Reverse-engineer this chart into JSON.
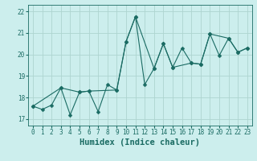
{
  "xlabel": "Humidex (Indice chaleur)",
  "background_color": "#cceeed",
  "grid_color": "#aed4d0",
  "line_color": "#1a6b63",
  "xlim": [
    -0.5,
    23.5
  ],
  "ylim": [
    16.7,
    22.3
  ],
  "yticks": [
    17,
    18,
    19,
    20,
    21,
    22
  ],
  "xticks": [
    0,
    1,
    2,
    3,
    4,
    5,
    6,
    7,
    8,
    9,
    10,
    11,
    12,
    13,
    14,
    15,
    16,
    17,
    18,
    19,
    20,
    21,
    22,
    23
  ],
  "line1_x": [
    0,
    1,
    2,
    3,
    4,
    5,
    6,
    7,
    8,
    9,
    10,
    11,
    12,
    13,
    14,
    15,
    16,
    17,
    18,
    19,
    20,
    21,
    22,
    23
  ],
  "line1_y": [
    17.6,
    17.45,
    17.65,
    18.45,
    17.2,
    18.25,
    18.3,
    17.35,
    18.6,
    18.35,
    20.6,
    21.75,
    18.6,
    19.35,
    20.5,
    19.4,
    20.3,
    19.6,
    19.55,
    20.95,
    19.95,
    20.75,
    20.1,
    20.3
  ],
  "line2_x": [
    0,
    3,
    5,
    6,
    9,
    10,
    11,
    13,
    14,
    15,
    17,
    18,
    19,
    21,
    22,
    23
  ],
  "line2_y": [
    17.6,
    18.45,
    18.25,
    18.3,
    18.35,
    20.6,
    21.75,
    19.35,
    20.5,
    19.4,
    19.6,
    19.55,
    20.95,
    20.75,
    20.1,
    20.3
  ],
  "marker_size": 2.5,
  "linewidth": 0.8,
  "tick_fontsize": 5.5,
  "label_fontsize": 7.5
}
